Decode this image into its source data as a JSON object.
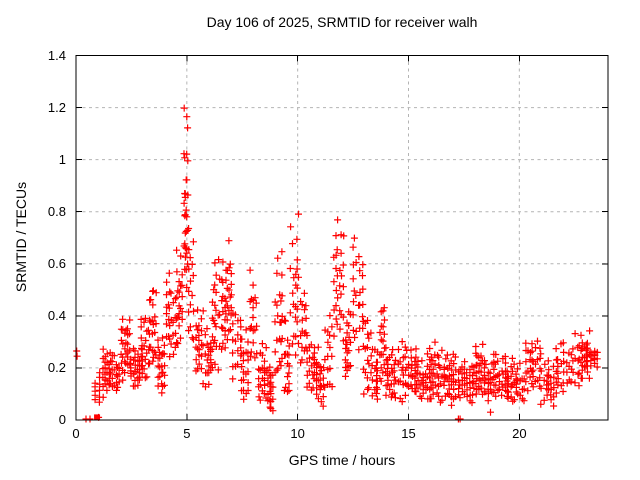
{
  "window": {
    "title": "Day 106 of 2025, SRMTID for receiver walh"
  },
  "chart_data": {
    "type": "scatter",
    "title": "Day 106 of 2025, SRMTID for receiver walh",
    "xlabel": "GPS time / hours",
    "ylabel": "SRMTID / TECUs",
    "xlim": [
      0,
      24
    ],
    "ylim": [
      0,
      1.4
    ],
    "grid": true,
    "legend": "none",
    "marker": "plus",
    "marker_color": "#ff0000",
    "grid_color": "#b4b4b4",
    "border_color": "#000000",
    "x_ticks": [
      {
        "v": 0,
        "label": "0"
      },
      {
        "v": 5,
        "label": "5"
      },
      {
        "v": 10,
        "label": "10"
      },
      {
        "v": 15,
        "label": "15"
      },
      {
        "v": 20,
        "label": "20"
      }
    ],
    "y_ticks": [
      {
        "v": 0,
        "label": "0"
      },
      {
        "v": 0.2,
        "label": "0.2"
      },
      {
        "v": 0.4,
        "label": "0.4"
      },
      {
        "v": 0.6,
        "label": "0.6"
      },
      {
        "v": 0.8,
        "label": "0.8"
      },
      {
        "v": 1,
        "label": "1"
      },
      {
        "v": 1.2,
        "label": "1.2"
      },
      {
        "v": 1.4,
        "label": "1.4"
      }
    ],
    "peak": {
      "time_hours": 4.95,
      "value": 1.24
    },
    "scatter_bands": [
      [
        0.8,
        1.2,
        0.04,
        0.2,
        12
      ],
      [
        1.2,
        1.6,
        0.08,
        0.3,
        25
      ],
      [
        1.6,
        2.0,
        0.1,
        0.28,
        25
      ],
      [
        2.0,
        2.45,
        0.14,
        0.43,
        30
      ],
      [
        2.45,
        2.9,
        0.12,
        0.3,
        25
      ],
      [
        2.9,
        3.3,
        0.15,
        0.4,
        28
      ],
      [
        3.3,
        3.65,
        0.18,
        0.52,
        28
      ],
      [
        3.65,
        4.05,
        0.1,
        0.35,
        25
      ],
      [
        4.05,
        4.5,
        0.22,
        0.58,
        30
      ],
      [
        4.5,
        4.8,
        0.28,
        0.66,
        25
      ],
      [
        4.85,
        5.05,
        0.45,
        1.24,
        30
      ],
      [
        5.05,
        5.35,
        0.3,
        0.78,
        22
      ],
      [
        5.35,
        5.7,
        0.15,
        0.45,
        22
      ],
      [
        5.7,
        6.1,
        0.1,
        0.42,
        25
      ],
      [
        6.1,
        6.45,
        0.2,
        0.63,
        25
      ],
      [
        6.45,
        6.75,
        0.25,
        0.6,
        20
      ],
      [
        6.75,
        7.05,
        0.3,
        0.75,
        25
      ],
      [
        7.05,
        7.45,
        0.15,
        0.45,
        22
      ],
      [
        7.45,
        7.8,
        0.05,
        0.35,
        22
      ],
      [
        7.8,
        8.2,
        0.2,
        0.58,
        25
      ],
      [
        8.2,
        8.6,
        0.08,
        0.3,
        25
      ],
      [
        8.6,
        8.95,
        0.03,
        0.22,
        22
      ],
      [
        8.95,
        9.35,
        0.15,
        0.68,
        28
      ],
      [
        9.35,
        9.65,
        0.1,
        0.4,
        20
      ],
      [
        9.65,
        10.1,
        0.25,
        0.8,
        30
      ],
      [
        10.1,
        10.4,
        0.2,
        0.55,
        20
      ],
      [
        10.4,
        10.8,
        0.1,
        0.32,
        25
      ],
      [
        10.8,
        11.2,
        0.05,
        0.28,
        25
      ],
      [
        11.2,
        11.6,
        0.12,
        0.45,
        22
      ],
      [
        11.6,
        12.1,
        0.25,
        0.81,
        30
      ],
      [
        12.1,
        12.45,
        0.15,
        0.45,
        22
      ],
      [
        12.45,
        12.95,
        0.28,
        0.76,
        30
      ],
      [
        12.95,
        13.35,
        0.1,
        0.4,
        25
      ],
      [
        13.35,
        13.65,
        0.08,
        0.28,
        22
      ],
      [
        13.65,
        13.95,
        0.12,
        0.44,
        22
      ],
      [
        13.95,
        14.4,
        0.08,
        0.3,
        30
      ],
      [
        14.4,
        14.9,
        0.07,
        0.33,
        30
      ],
      [
        14.9,
        15.4,
        0.08,
        0.28,
        30
      ],
      [
        15.4,
        15.9,
        0.07,
        0.26,
        30
      ],
      [
        15.9,
        16.4,
        0.08,
        0.3,
        30
      ],
      [
        16.4,
        16.9,
        0.07,
        0.27,
        30
      ],
      [
        16.9,
        17.4,
        0.05,
        0.25,
        25
      ],
      [
        17.4,
        17.9,
        0.06,
        0.25,
        25
      ],
      [
        17.9,
        18.4,
        0.08,
        0.3,
        28
      ],
      [
        18.4,
        18.9,
        0.07,
        0.26,
        28
      ],
      [
        18.9,
        19.4,
        0.08,
        0.25,
        28
      ],
      [
        19.4,
        19.9,
        0.07,
        0.24,
        28
      ],
      [
        19.9,
        20.25,
        0.06,
        0.22,
        20
      ],
      [
        20.25,
        20.6,
        0.1,
        0.37,
        22
      ],
      [
        20.6,
        20.95,
        0.12,
        0.3,
        18
      ],
      [
        20.95,
        21.6,
        0.05,
        0.26,
        30
      ],
      [
        21.6,
        22.3,
        0.09,
        0.3,
        30
      ],
      [
        22.3,
        22.75,
        0.12,
        0.33,
        25
      ],
      [
        22.75,
        23.2,
        0.15,
        0.36,
        28
      ],
      [
        23.2,
        23.55,
        0.18,
        0.32,
        15
      ]
    ],
    "isolated_points": [
      [
        0.03,
        0.265
      ],
      [
        0.05,
        0.245
      ],
      [
        0.45,
        0.004
      ],
      [
        0.63,
        0.004
      ],
      [
        1.02,
        0.01
      ],
      [
        17.25,
        0.004
      ],
      [
        17.33,
        0.004
      ],
      [
        18.7,
        0.03
      ]
    ],
    "square_marker_point": [
      0.95,
      0.01
    ]
  }
}
